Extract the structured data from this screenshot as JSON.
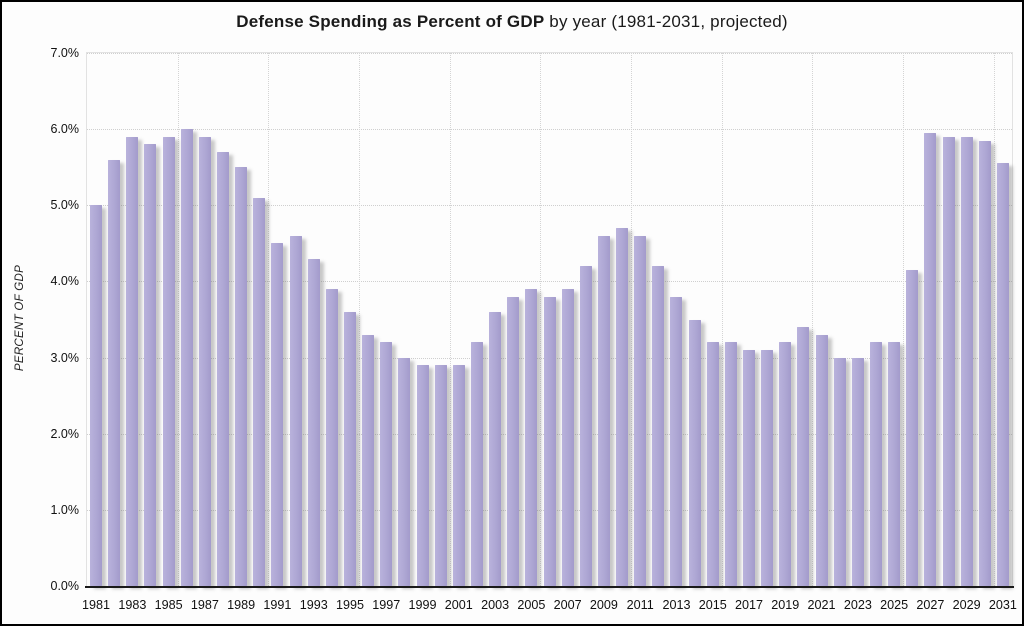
{
  "title": {
    "bold": "Defense Spending as Percent of GDP",
    "regular": " by year (1981-2031, projected)"
  },
  "chart_data": {
    "type": "bar",
    "title": "Defense Spending as Percent of GDP by year (1981-2031, projected)",
    "xlabel": "",
    "ylabel": "PERCENT OF GDP",
    "ylim": [
      0,
      7
    ],
    "ytick_labels": [
      "0.0%",
      "1.0%",
      "2.0%",
      "3.0%",
      "4.0%",
      "5.0%",
      "6.0%",
      "7.0%"
    ],
    "xtick_label_years": [
      1981,
      1983,
      1985,
      1987,
      1989,
      1991,
      1993,
      1995,
      1997,
      1999,
      2001,
      2003,
      2005,
      2007,
      2009,
      2011,
      2013,
      2015,
      2017,
      2019,
      2021,
      2023,
      2025,
      2027,
      2029,
      2031
    ],
    "categories": [
      1981,
      1982,
      1983,
      1984,
      1985,
      1986,
      1987,
      1988,
      1989,
      1990,
      1991,
      1992,
      1993,
      1994,
      1995,
      1996,
      1997,
      1998,
      1999,
      2000,
      2001,
      2002,
      2003,
      2004,
      2005,
      2006,
      2007,
      2008,
      2009,
      2010,
      2011,
      2012,
      2013,
      2014,
      2015,
      2016,
      2017,
      2018,
      2019,
      2020,
      2021,
      2022,
      2023,
      2024,
      2025,
      2026,
      2027,
      2028,
      2029,
      2030,
      2031
    ],
    "values": [
      5.0,
      5.6,
      5.9,
      5.8,
      5.9,
      6.0,
      5.9,
      5.7,
      5.5,
      5.1,
      4.5,
      4.6,
      4.3,
      3.9,
      3.6,
      3.3,
      3.2,
      3.0,
      2.9,
      2.9,
      2.9,
      3.2,
      3.6,
      3.8,
      3.9,
      3.8,
      3.9,
      4.2,
      4.6,
      4.7,
      4.6,
      4.2,
      3.8,
      3.5,
      3.2,
      3.2,
      3.1,
      3.1,
      3.2,
      3.4,
      3.3,
      3.0,
      3.0,
      3.2,
      3.2,
      4.15,
      5.95,
      5.9,
      5.9,
      5.85,
      5.55
    ],
    "grid": true,
    "vertical_gridline_every_years": 5,
    "legend": false,
    "bar_color": "#aea7d4",
    "unit": "%"
  }
}
